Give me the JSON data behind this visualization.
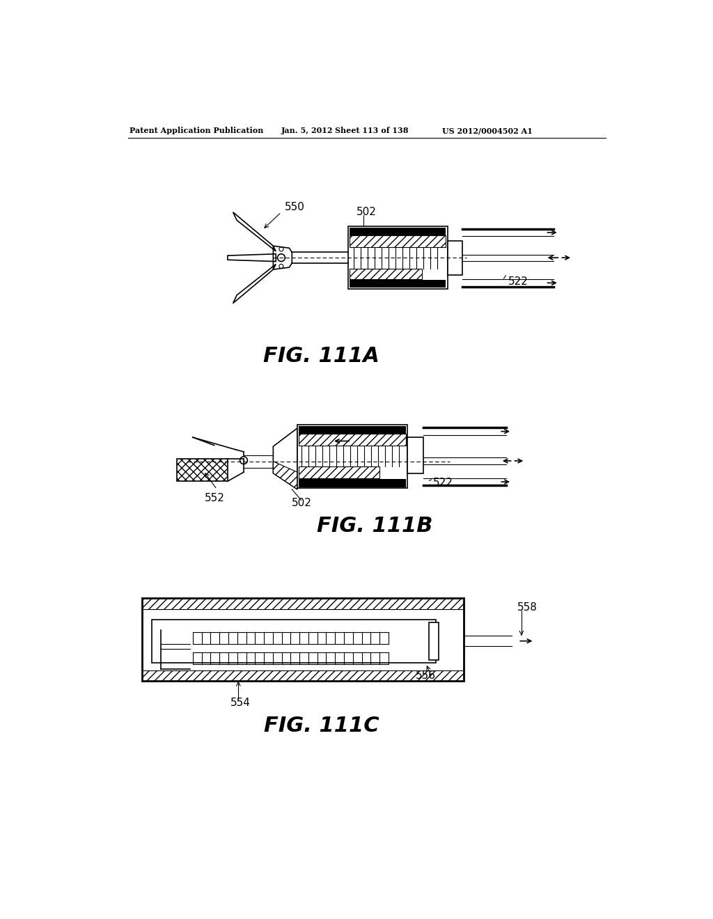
{
  "background_color": "#ffffff",
  "header_left": "Patent Application Publication",
  "header_center": "Jan. 5, 2012",
  "header_sheet": "Sheet 113 of 138",
  "header_patent": "US 2012/0004502 A1",
  "fig_labels": [
    "FIG. 111A",
    "FIG. 111B",
    "FIG. 111C"
  ]
}
